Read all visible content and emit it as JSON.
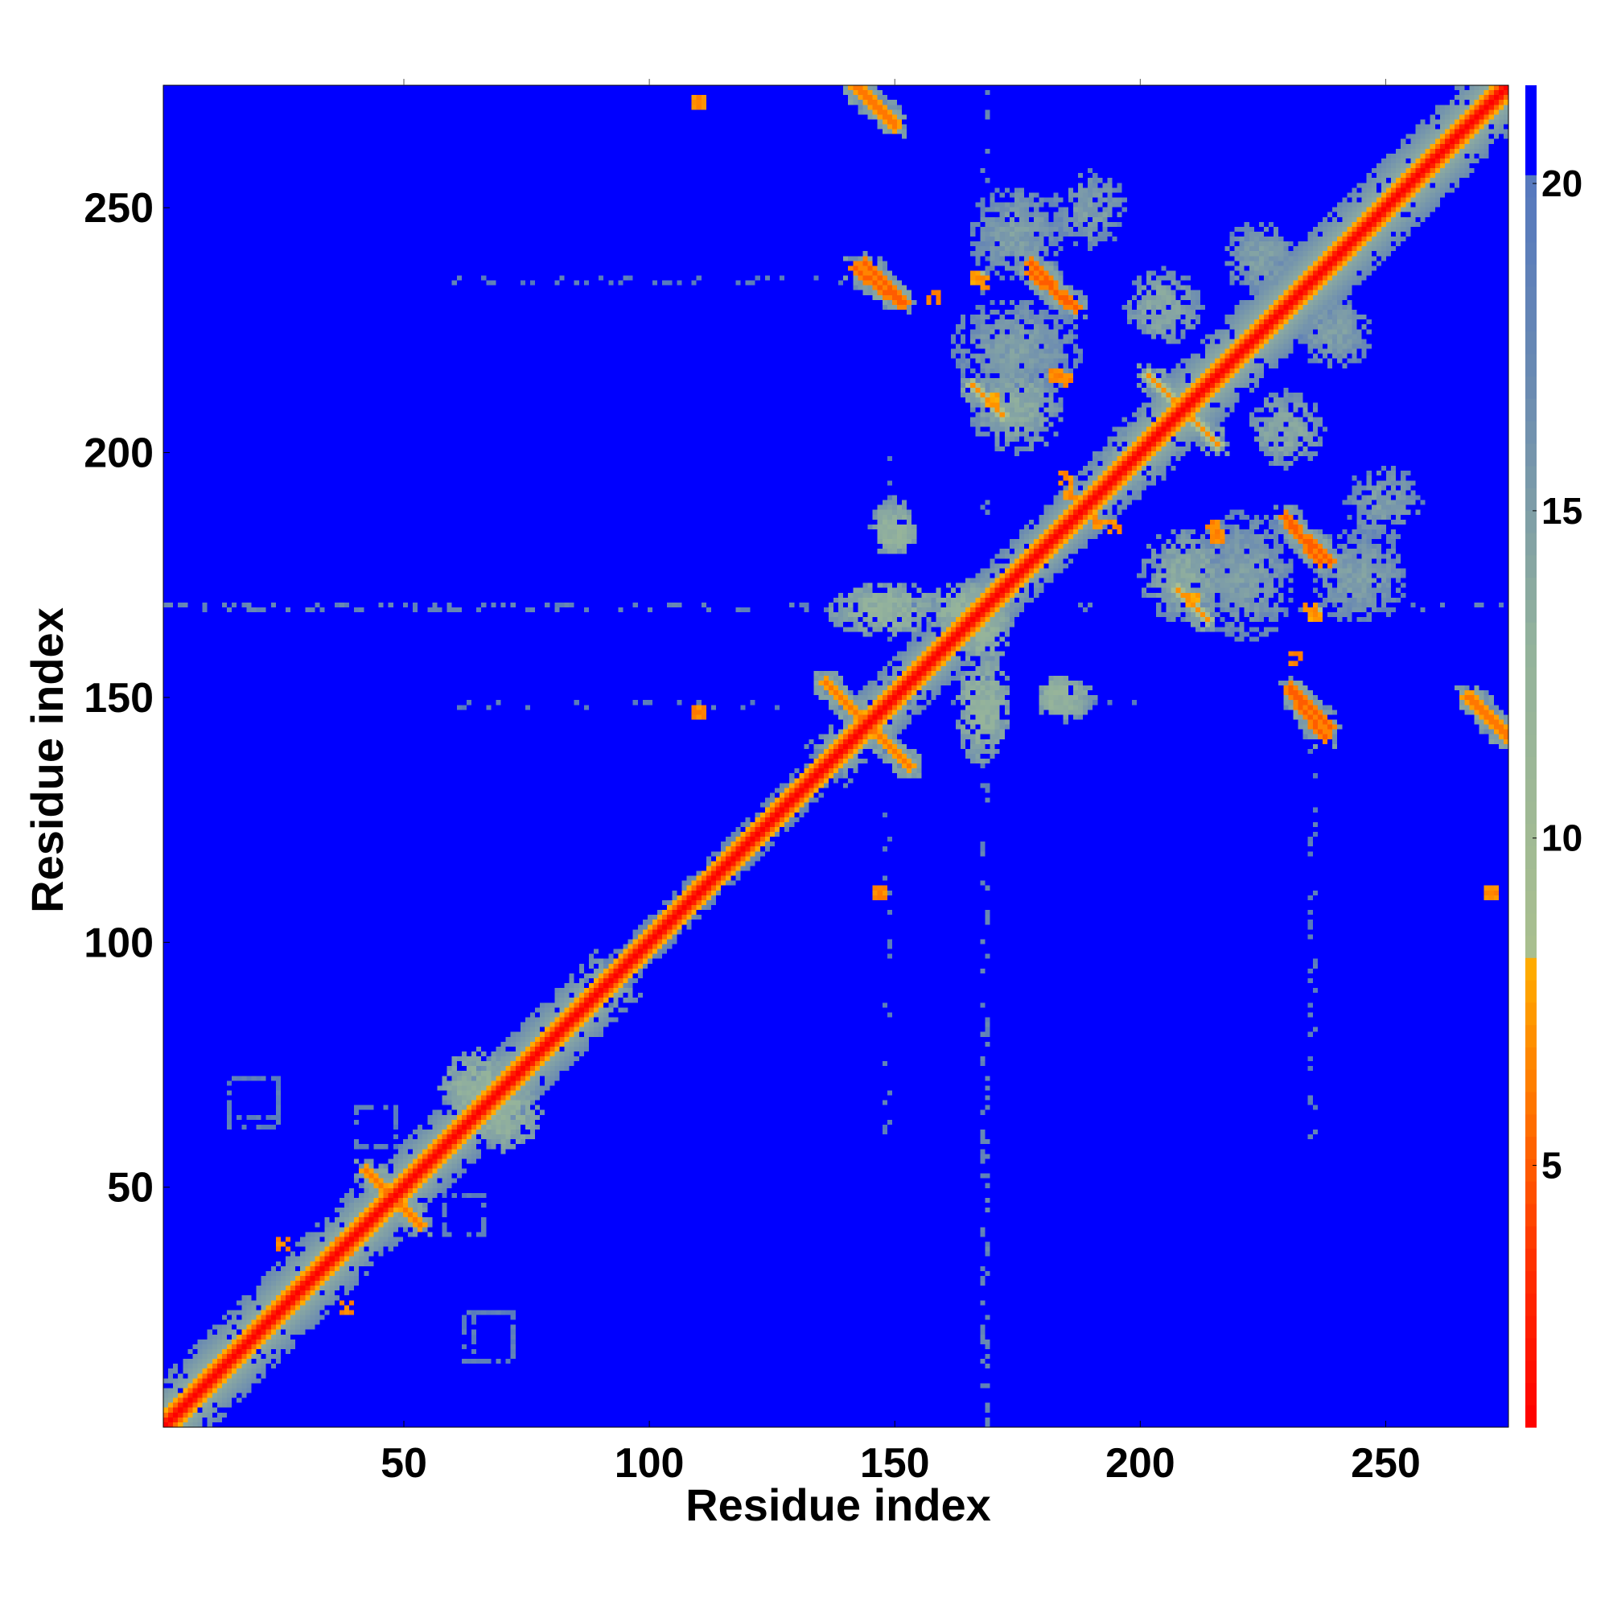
{
  "chart_data": {
    "type": "heatmap",
    "title": "",
    "xlabel": "Residue index",
    "ylabel": "Residue index",
    "xlim": [
      1,
      275
    ],
    "ylim": [
      1,
      275
    ],
    "x_ticks": [
      50,
      100,
      150,
      200,
      250
    ],
    "y_ticks": [
      50,
      100,
      150,
      200,
      250
    ],
    "grid": false,
    "colorbar": {
      "ticks": [
        5,
        10,
        15,
        20
      ],
      "range": [
        1,
        21.5
      ],
      "colors": {
        "near": "#ff0000",
        "close": "#ff6a00",
        "mid": "#ffb000",
        "medium": "#a9bf8f",
        "far": "#6a8ab2",
        "background": "#0000ff"
      }
    },
    "cutoff_value": 21,
    "features": {
      "diagonal_width_residues": 4,
      "band_segments": [
        {
          "from": 1,
          "to": 40,
          "halfwidth": 10,
          "value": 14
        },
        {
          "from": 40,
          "to": 90,
          "halfwidth": 9,
          "value": 14
        },
        {
          "from": 90,
          "to": 140,
          "halfwidth": 5,
          "value": 15
        },
        {
          "from": 140,
          "to": 200,
          "halfwidth": 8,
          "value": 14
        },
        {
          "from": 200,
          "to": 275,
          "halfwidth": 10,
          "value": 14
        }
      ],
      "blobs": [
        {
          "x": 165,
          "y": 168,
          "rx": 10,
          "ry": 6,
          "value": 15
        },
        {
          "x": 168,
          "y": 148,
          "rx": 6,
          "ry": 12,
          "value": 15
        },
        {
          "x": 150,
          "y": 183,
          "rx": 5,
          "ry": 4,
          "value": 15
        },
        {
          "x": 210,
          "y": 175,
          "rx": 10,
          "ry": 10,
          "value": 16
        },
        {
          "x": 230,
          "y": 205,
          "rx": 8,
          "ry": 8,
          "value": 16
        },
        {
          "x": 185,
          "y": 150,
          "rx": 6,
          "ry": 5,
          "value": 15
        },
        {
          "x": 65,
          "y": 70,
          "rx": 8,
          "ry": 8,
          "value": 15
        },
        {
          "x": 175,
          "y": 222,
          "rx": 14,
          "ry": 10,
          "value": 17
        },
        {
          "x": 245,
          "y": 175,
          "rx": 10,
          "ry": 10,
          "value": 17
        },
        {
          "x": 190,
          "y": 250,
          "rx": 8,
          "ry": 8,
          "value": 17
        },
        {
          "x": 225,
          "y": 240,
          "rx": 8,
          "ry": 8,
          "value": 17
        }
      ],
      "antidiagonal_strands": [
        {
          "x1": 136,
          "y1": 153,
          "x2": 153,
          "y2": 136,
          "value": 6
        },
        {
          "x1": 42,
          "y1": 53,
          "x2": 53,
          "y2": 42,
          "value": 6
        },
        {
          "x1": 142,
          "y1": 238,
          "x2": 151,
          "y2": 231,
          "value": 5
        },
        {
          "x1": 178,
          "y1": 237,
          "x2": 187,
          "y2": 230,
          "value": 5
        },
        {
          "x1": 231,
          "y1": 185,
          "x2": 239,
          "y2": 178,
          "value": 5
        },
        {
          "x1": 231,
          "y1": 152,
          "x2": 239,
          "y2": 144,
          "value": 5
        },
        {
          "x1": 142,
          "y1": 275,
          "x2": 150,
          "y2": 267,
          "value": 6
        },
        {
          "x1": 268,
          "y1": 150,
          "x2": 275,
          "y2": 143,
          "value": 6
        },
        {
          "x1": 202,
          "y1": 216,
          "x2": 215,
          "y2": 203,
          "value": 7
        },
        {
          "x1": 166,
          "y1": 214,
          "x2": 172,
          "y2": 208,
          "value": 7
        }
      ],
      "contact_spots": [
        {
          "x": 110,
          "y": 147,
          "value": 6
        },
        {
          "x": 147,
          "y": 110,
          "value": 6
        },
        {
          "x": 110,
          "y": 272,
          "value": 6
        },
        {
          "x": 272,
          "y": 110,
          "value": 6
        },
        {
          "x": 37,
          "y": 38,
          "value": 6
        },
        {
          "x": 38,
          "y": 25,
          "value": 6
        },
        {
          "x": 167,
          "y": 236,
          "value": 7
        },
        {
          "x": 158,
          "y": 232,
          "value": 6
        },
        {
          "x": 183,
          "y": 216,
          "value": 6
        },
        {
          "x": 185,
          "y": 195,
          "value": 6
        },
        {
          "x": 215,
          "y": 185,
          "value": 6
        },
        {
          "x": 235,
          "y": 168,
          "value": 6
        },
        {
          "x": 211,
          "y": 170,
          "value": 7
        },
        {
          "x": 192,
          "y": 186,
          "value": 6
        }
      ],
      "scatter_lines": [
        {
          "orientation": "horizontal",
          "at": 168,
          "from": 1,
          "to": 275,
          "value": 17
        },
        {
          "orientation": "vertical",
          "at": 168,
          "from": 1,
          "to": 140,
          "value": 17
        },
        {
          "orientation": "vertical",
          "at": 235,
          "from": 60,
          "to": 140,
          "value": 18
        },
        {
          "orientation": "horizontal",
          "at": 148,
          "from": 60,
          "to": 200,
          "value": 18
        }
      ],
      "small_box_clusters": [
        {
          "x0": 14,
          "y0": 64,
          "x1": 24,
          "y1": 72,
          "value": 18
        },
        {
          "x0": 62,
          "y0": 14,
          "x1": 72,
          "y1": 24,
          "value": 18
        },
        {
          "x0": 58,
          "y0": 40,
          "x1": 66,
          "y1": 48,
          "value": 18
        }
      ]
    }
  }
}
